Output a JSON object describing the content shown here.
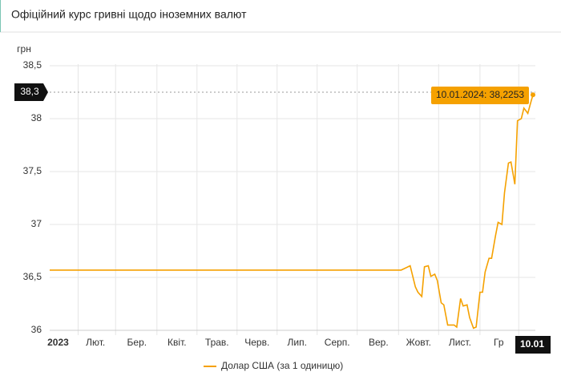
{
  "header": {
    "title": "Офіційний курс гривні щодо іноземних валют"
  },
  "chart_data": {
    "type": "line",
    "y_label": "грн",
    "x": [
      0,
      272,
      279,
      283,
      285,
      288,
      290,
      293,
      295,
      298,
      300,
      303,
      305,
      308,
      313,
      315,
      318,
      320,
      323,
      325,
      328,
      330,
      333,
      335,
      337,
      340,
      342,
      345,
      347,
      350,
      352,
      355,
      357,
      360,
      362,
      365,
      367,
      370,
      372,
      374
    ],
    "series": [
      {
        "name": "Долар США (за 1 одиницю)",
        "color": "#f5a100",
        "values": [
          36.5686,
          36.5686,
          36.61,
          36.41,
          36.36,
          36.32,
          36.6,
          36.61,
          36.51,
          36.53,
          36.47,
          36.26,
          36.24,
          36.05,
          36.05,
          36.03,
          36.3,
          36.23,
          36.24,
          36.12,
          36.02,
          36.03,
          36.36,
          36.36,
          36.55,
          36.68,
          36.68,
          36.89,
          37.02,
          37.0,
          37.3,
          37.58,
          37.59,
          37.38,
          37.98,
          38.0,
          38.1,
          38.05,
          38.14,
          38.2253
        ]
      }
    ],
    "xlim": [
      0,
      374
    ],
    "xticks": [
      {
        "value": 22,
        "label": "2023"
      },
      {
        "value": 51,
        "label": "Лют."
      },
      {
        "value": 83,
        "label": "Бер."
      },
      {
        "value": 114,
        "label": "Квіт."
      },
      {
        "value": 145,
        "label": "Трав."
      },
      {
        "value": 176,
        "label": "Черв."
      },
      {
        "value": 207,
        "label": "Лип."
      },
      {
        "value": 238,
        "label": "Серп."
      },
      {
        "value": 270,
        "label": "Вер."
      },
      {
        "value": 301,
        "label": "Жовт."
      },
      {
        "value": 333,
        "label": "Лист."
      },
      {
        "value": 363,
        "label": "Гр"
      }
    ],
    "ylim": [
      36,
      38.5
    ],
    "yticks": [
      {
        "value": 36,
        "label": "36"
      },
      {
        "value": 36.5,
        "label": "36,5"
      },
      {
        "value": 37,
        "label": "37"
      },
      {
        "value": 37.5,
        "label": "37,5"
      },
      {
        "value": 38,
        "label": "38"
      },
      {
        "value": 38.5,
        "label": "38,5"
      }
    ],
    "crosshair_y": {
      "value": 38.25,
      "label": "38,3"
    },
    "crosshair_x": {
      "value": 374,
      "label": "10.01"
    },
    "tooltip": "10.01.2024: 38,2253",
    "grid": true
  }
}
